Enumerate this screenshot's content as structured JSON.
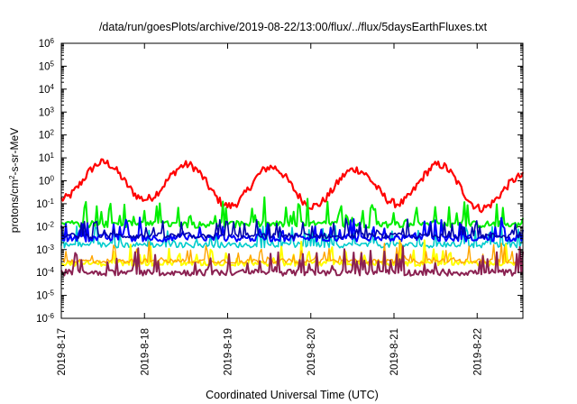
{
  "chart_data": {
    "type": "line",
    "title": "/data/run/goesPlots/archive/2019-08-22/13:00/flux/../flux/5daysEarthFluxes.txt",
    "xlabel": "Coordinated Universal Time (UTC)",
    "ylabel": {
      "prefix": "protons/cm",
      "sup": "2",
      "suffix": "-s-sr-MeV"
    },
    "yscale": "log",
    "ylim": [
      -6,
      6
    ],
    "xlim": [
      0,
      5.55
    ],
    "y_ticks": [
      -6,
      -5,
      -4,
      -3,
      -2,
      -1,
      0,
      1,
      2,
      3,
      4,
      5,
      6
    ],
    "x_ticks": [
      {
        "x": 0,
        "label": "2019-8-17"
      },
      {
        "x": 1,
        "label": "2019-8-18"
      },
      {
        "x": 2,
        "label": "2019-8-19"
      },
      {
        "x": 3,
        "label": "2019-8-20"
      },
      {
        "x": 4,
        "label": "2019-8-21"
      },
      {
        "x": 5,
        "label": "2019-8-22"
      }
    ],
    "grid": false,
    "legend": "none",
    "series": [
      {
        "color": "#ff0000",
        "base": [
          -0.8,
          0.8,
          -0.8,
          0.7,
          -1.1,
          0.6,
          -1.1,
          0.5,
          -1.0,
          0.7,
          -1.2,
          0.2
        ],
        "noise": 0.18,
        "spikes": 0.0,
        "width": 2.2
      },
      {
        "color": "#00ee00",
        "base": [
          -1.9
        ],
        "noise": 0.15,
        "spikes": 0.55,
        "width": 2.0
      },
      {
        "color": "#00cccc",
        "base": [
          -2.8
        ],
        "noise": 0.12,
        "spikes": 0.45,
        "width": 1.6
      },
      {
        "color": "#0000ff",
        "base": [
          -2.5
        ],
        "noise": 0.15,
        "spikes": 0.4,
        "width": 2.0
      },
      {
        "color": "#0000aa",
        "base": [
          -2.4
        ],
        "noise": 0.12,
        "spikes": 0.35,
        "width": 1.6
      },
      {
        "color": "#ffff00",
        "base": [
          -3.6
        ],
        "noise": 0.12,
        "spikes": 0.45,
        "width": 2.0
      },
      {
        "color": "#ffa500",
        "base": [
          -3.5
        ],
        "noise": 0.1,
        "spikes": 0.4,
        "width": 1.4
      },
      {
        "color": "#8b2252",
        "base": [
          -4.0
        ],
        "noise": 0.14,
        "spikes": 0.5,
        "width": 2.0
      }
    ]
  }
}
